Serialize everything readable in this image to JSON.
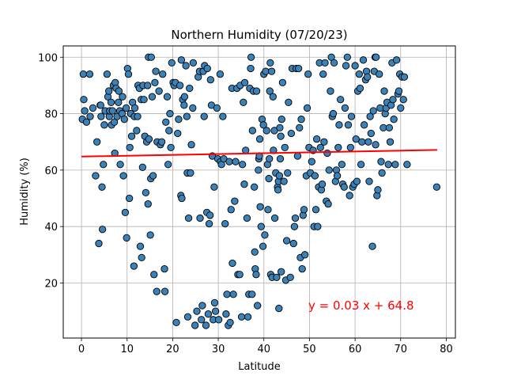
{
  "chart_data": {
    "type": "scatter",
    "title": "Northern Humidity (07/20/23)",
    "xlabel": "Latitude",
    "ylabel": "Humidity (%)",
    "xlim": [
      -4.0,
      82.0
    ],
    "ylim": [
      0.5,
      104.0
    ],
    "xticks": [
      0,
      10,
      20,
      30,
      40,
      50,
      60,
      70,
      80
    ],
    "yticks": [
      20,
      40,
      60,
      80,
      100
    ],
    "grid": true,
    "colors": {
      "point_fill": "#3a82b8",
      "point_edge": "#000000",
      "regression": "#ff0000",
      "grid": "#b0b0b0"
    },
    "regression": {
      "slope": 0.03,
      "intercept": 64.8,
      "x_range": [
        0,
        78
      ],
      "label": "y = 0.03 x + 64.8"
    },
    "points": [
      [
        0.2,
        78
      ],
      [
        0.4,
        94
      ],
      [
        0.5,
        85
      ],
      [
        0.7,
        81
      ],
      [
        1.1,
        77
      ],
      [
        1.8,
        94
      ],
      [
        1.9,
        79
      ],
      [
        2.5,
        82
      ],
      [
        3.1,
        58
      ],
      [
        3.4,
        70
      ],
      [
        3.8,
        34
      ],
      [
        4.1,
        83
      ],
      [
        4.2,
        83
      ],
      [
        4.3,
        79
      ],
      [
        4.5,
        54
      ],
      [
        4.6,
        39
      ],
      [
        4.8,
        62
      ],
      [
        5.0,
        76
      ],
      [
        5.2,
        81
      ],
      [
        5.6,
        94
      ],
      [
        5.8,
        86
      ],
      [
        6.0,
        88
      ],
      [
        6.1,
        79
      ],
      [
        6.2,
        81
      ],
      [
        6.5,
        84
      ],
      [
        6.6,
        76
      ],
      [
        6.8,
        81
      ],
      [
        7.0,
        90
      ],
      [
        7.2,
        77
      ],
      [
        7.3,
        66
      ],
      [
        7.4,
        91
      ],
      [
        7.6,
        89
      ],
      [
        7.8,
        79
      ],
      [
        8.1,
        84
      ],
      [
        8.2,
        88
      ],
      [
        8.4,
        81
      ],
      [
        8.5,
        62
      ],
      [
        8.9,
        80
      ],
      [
        9.0,
        86
      ],
      [
        9.2,
        58
      ],
      [
        9.4,
        78
      ],
      [
        9.6,
        45
      ],
      [
        9.8,
        82
      ],
      [
        9.9,
        36
      ],
      [
        10.1,
        96
      ],
      [
        10.3,
        94
      ],
      [
        10.5,
        50
      ],
      [
        10.6,
        68
      ],
      [
        10.8,
        80
      ],
      [
        11.0,
        72
      ],
      [
        11.2,
        84
      ],
      [
        11.5,
        26
      ],
      [
        11.6,
        79
      ],
      [
        11.7,
        82
      ],
      [
        12.1,
        74
      ],
      [
        12.3,
        79
      ],
      [
        12.4,
        90
      ],
      [
        12.7,
        89
      ],
      [
        12.9,
        33
      ],
      [
        13.1,
        85
      ],
      [
        13.2,
        29
      ],
      [
        13.4,
        61
      ],
      [
        13.5,
        90
      ],
      [
        13.7,
        85
      ],
      [
        13.9,
        72
      ],
      [
        14.1,
        52
      ],
      [
        14.3,
        70
      ],
      [
        14.5,
        90
      ],
      [
        14.6,
        48
      ],
      [
        14.7,
        100
      ],
      [
        14.8,
        71
      ],
      [
        15.1,
        37
      ],
      [
        15.2,
        57
      ],
      [
        15.3,
        100
      ],
      [
        15.5,
        86
      ],
      [
        15.7,
        58
      ],
      [
        15.9,
        23
      ],
      [
        16.1,
        91
      ],
      [
        16.3,
        95
      ],
      [
        16.5,
        17
      ],
      [
        16.6,
        70
      ],
      [
        17.0,
        88
      ],
      [
        17.3,
        69
      ],
      [
        17.6,
        70
      ],
      [
        17.8,
        94
      ],
      [
        18.2,
        25
      ],
      [
        18.3,
        17
      ],
      [
        18.5,
        77
      ],
      [
        18.8,
        86
      ],
      [
        19.0,
        62
      ],
      [
        19.2,
        74
      ],
      [
        19.4,
        80
      ],
      [
        19.6,
        68
      ],
      [
        19.8,
        98
      ],
      [
        20.1,
        91
      ],
      [
        20.3,
        90
      ],
      [
        20.6,
        91
      ],
      [
        20.8,
        6
      ],
      [
        21.1,
        73
      ],
      [
        21.3,
        78
      ],
      [
        21.6,
        90
      ],
      [
        21.8,
        51
      ],
      [
        21.9,
        99
      ],
      [
        22.0,
        50
      ],
      [
        22.2,
        85
      ],
      [
        22.5,
        83
      ],
      [
        22.6,
        86
      ],
      [
        22.9,
        97
      ],
      [
        23.1,
        79
      ],
      [
        23.2,
        59
      ],
      [
        23.3,
        8
      ],
      [
        23.5,
        43
      ],
      [
        23.7,
        89
      ],
      [
        23.9,
        59
      ],
      [
        24.1,
        69
      ],
      [
        24.4,
        82
      ],
      [
        24.5,
        98
      ],
      [
        24.9,
        5
      ],
      [
        25.3,
        10
      ],
      [
        25.6,
        93
      ],
      [
        25.9,
        95
      ],
      [
        26.0,
        43
      ],
      [
        26.3,
        7
      ],
      [
        26.5,
        12
      ],
      [
        26.7,
        95
      ],
      [
        26.9,
        79
      ],
      [
        27.0,
        97
      ],
      [
        27.3,
        5
      ],
      [
        27.5,
        45
      ],
      [
        27.6,
        96
      ],
      [
        27.8,
        9
      ],
      [
        28.0,
        41
      ],
      [
        28.2,
        44
      ],
      [
        28.3,
        92
      ],
      [
        28.5,
        83
      ],
      [
        28.7,
        65
      ],
      [
        28.9,
        7
      ],
      [
        29.1,
        54
      ],
      [
        29.2,
        13
      ],
      [
        29.4,
        10
      ],
      [
        29.7,
        82
      ],
      [
        29.9,
        64
      ],
      [
        30.1,
        7
      ],
      [
        30.4,
        94
      ],
      [
        30.5,
        63
      ],
      [
        30.7,
        62
      ],
      [
        31.0,
        79
      ],
      [
        31.2,
        64
      ],
      [
        31.5,
        41
      ],
      [
        31.7,
        9
      ],
      [
        31.9,
        16
      ],
      [
        32.2,
        5
      ],
      [
        32.4,
        63
      ],
      [
        32.6,
        6
      ],
      [
        32.8,
        46
      ],
      [
        33.0,
        89
      ],
      [
        33.1,
        27
      ],
      [
        33.3,
        16
      ],
      [
        33.6,
        49
      ],
      [
        33.8,
        63
      ],
      [
        34.1,
        89
      ],
      [
        34.3,
        23
      ],
      [
        34.7,
        23
      ],
      [
        34.8,
        90
      ],
      [
        35.1,
        8
      ],
      [
        35.3,
        62
      ],
      [
        35.5,
        84
      ],
      [
        35.7,
        55
      ],
      [
        35.8,
        91
      ],
      [
        36.0,
        67
      ],
      [
        36.3,
        43
      ],
      [
        36.5,
        8
      ],
      [
        36.7,
        16
      ],
      [
        36.9,
        89
      ],
      [
        37.1,
        96
      ],
      [
        37.2,
        100
      ],
      [
        37.4,
        16
      ],
      [
        37.5,
        74
      ],
      [
        37.7,
        88
      ],
      [
        37.9,
        54
      ],
      [
        38.0,
        31
      ],
      [
        38.1,
        25
      ],
      [
        38.3,
        23
      ],
      [
        38.4,
        88
      ],
      [
        38.6,
        12
      ],
      [
        38.8,
        60
      ],
      [
        38.9,
        64
      ],
      [
        39.0,
        65
      ],
      [
        39.1,
        71
      ],
      [
        39.2,
        47
      ],
      [
        39.4,
        40
      ],
      [
        39.6,
        78
      ],
      [
        39.8,
        33
      ],
      [
        39.9,
        76
      ],
      [
        40.0,
        94
      ],
      [
        40.2,
        37
      ],
      [
        40.4,
        95
      ],
      [
        40.6,
        74
      ],
      [
        40.8,
        62
      ],
      [
        40.9,
        46
      ],
      [
        41.1,
        57
      ],
      [
        41.2,
        64
      ],
      [
        41.3,
        88
      ],
      [
        41.4,
        98
      ],
      [
        41.5,
        23
      ],
      [
        41.7,
        95
      ],
      [
        41.8,
        22
      ],
      [
        42.0,
        86
      ],
      [
        42.1,
        67
      ],
      [
        42.3,
        74
      ],
      [
        42.4,
        43
      ],
      [
        42.6,
        59
      ],
      [
        42.8,
        22
      ],
      [
        43.0,
        54
      ],
      [
        43.1,
        53
      ],
      [
        43.2,
        56
      ],
      [
        43.3,
        11
      ],
      [
        43.4,
        58
      ],
      [
        43.5,
        75
      ],
      [
        43.6,
        64
      ],
      [
        43.7,
        72
      ],
      [
        43.8,
        24
      ],
      [
        43.9,
        78
      ],
      [
        44.1,
        91
      ],
      [
        44.4,
        56
      ],
      [
        44.6,
        68
      ],
      [
        44.8,
        21
      ],
      [
        45.0,
        35
      ],
      [
        45.2,
        59
      ],
      [
        45.4,
        84
      ],
      [
        45.8,
        22
      ],
      [
        46.0,
        73
      ],
      [
        46.2,
        96
      ],
      [
        46.5,
        34
      ],
      [
        46.7,
        40
      ],
      [
        46.9,
        43
      ],
      [
        47.1,
        96
      ],
      [
        47.4,
        65
      ],
      [
        47.6,
        96
      ],
      [
        47.8,
        75
      ],
      [
        48.0,
        29
      ],
      [
        48.2,
        78
      ],
      [
        48.4,
        25
      ],
      [
        48.6,
        44
      ],
      [
        48.8,
        46
      ],
      [
        49.0,
        30
      ],
      [
        49.3,
        58
      ],
      [
        49.5,
        82
      ],
      [
        49.7,
        94
      ],
      [
        49.9,
        68
      ],
      [
        50.2,
        59
      ],
      [
        50.5,
        63
      ],
      [
        50.8,
        67
      ],
      [
        51.0,
        40
      ],
      [
        51.2,
        58
      ],
      [
        51.4,
        46
      ],
      [
        51.6,
        71
      ],
      [
        51.8,
        40
      ],
      [
        52.0,
        54
      ],
      [
        52.2,
        98
      ],
      [
        52.4,
        68
      ],
      [
        52.6,
        53
      ],
      [
        52.8,
        55
      ],
      [
        53.0,
        94
      ],
      [
        53.2,
        70
      ],
      [
        53.4,
        98
      ],
      [
        53.7,
        49
      ],
      [
        53.9,
        66
      ],
      [
        54.1,
        48
      ],
      [
        54.3,
        60
      ],
      [
        54.6,
        88
      ],
      [
        54.8,
        100
      ],
      [
        55.0,
        79
      ],
      [
        55.2,
        80
      ],
      [
        55.4,
        98
      ],
      [
        55.7,
        56
      ],
      [
        55.9,
        60
      ],
      [
        56.1,
        58
      ],
      [
        56.3,
        68
      ],
      [
        56.5,
        76
      ],
      [
        56.8,
        85
      ],
      [
        57.1,
        62
      ],
      [
        57.3,
        55
      ],
      [
        57.6,
        54
      ],
      [
        57.8,
        82
      ],
      [
        58.0,
        97
      ],
      [
        58.3,
        100
      ],
      [
        58.5,
        76
      ],
      [
        58.8,
        51
      ],
      [
        59.0,
        68
      ],
      [
        59.2,
        79
      ],
      [
        59.5,
        54
      ],
      [
        59.8,
        55
      ],
      [
        60.0,
        97
      ],
      [
        60.2,
        71
      ],
      [
        60.4,
        56
      ],
      [
        60.6,
        88
      ],
      [
        60.9,
        94
      ],
      [
        61.1,
        89
      ],
      [
        61.3,
        62
      ],
      [
        61.5,
        70
      ],
      [
        61.8,
        99
      ],
      [
        62.0,
        76
      ],
      [
        62.3,
        92
      ],
      [
        62.5,
        95
      ],
      [
        62.7,
        93
      ],
      [
        62.9,
        70
      ],
      [
        63.1,
        56
      ],
      [
        63.3,
        79
      ],
      [
        63.5,
        73
      ],
      [
        63.8,
        33
      ],
      [
        64.0,
        81
      ],
      [
        64.2,
        95
      ],
      [
        64.4,
        100
      ],
      [
        64.5,
        69
      ],
      [
        64.6,
        100
      ],
      [
        64.8,
        51
      ],
      [
        65.0,
        53
      ],
      [
        65.3,
        94
      ],
      [
        65.5,
        82
      ],
      [
        65.7,
        63
      ],
      [
        65.9,
        59
      ],
      [
        66.2,
        75
      ],
      [
        66.4,
        88
      ],
      [
        66.6,
        80
      ],
      [
        66.8,
        82
      ],
      [
        67.0,
        84
      ],
      [
        67.3,
        62
      ],
      [
        67.5,
        75
      ],
      [
        67.7,
        70
      ],
      [
        67.9,
        83
      ],
      [
        68.1,
        98
      ],
      [
        68.3,
        85
      ],
      [
        68.5,
        78
      ],
      [
        68.8,
        62
      ],
      [
        69.1,
        99
      ],
      [
        69.4,
        87
      ],
      [
        69.6,
        88
      ],
      [
        69.8,
        94
      ],
      [
        70.0,
        82
      ],
      [
        70.3,
        93
      ],
      [
        70.6,
        85
      ],
      [
        70.8,
        93
      ],
      [
        71.4,
        62
      ],
      [
        77.9,
        54
      ]
    ]
  }
}
